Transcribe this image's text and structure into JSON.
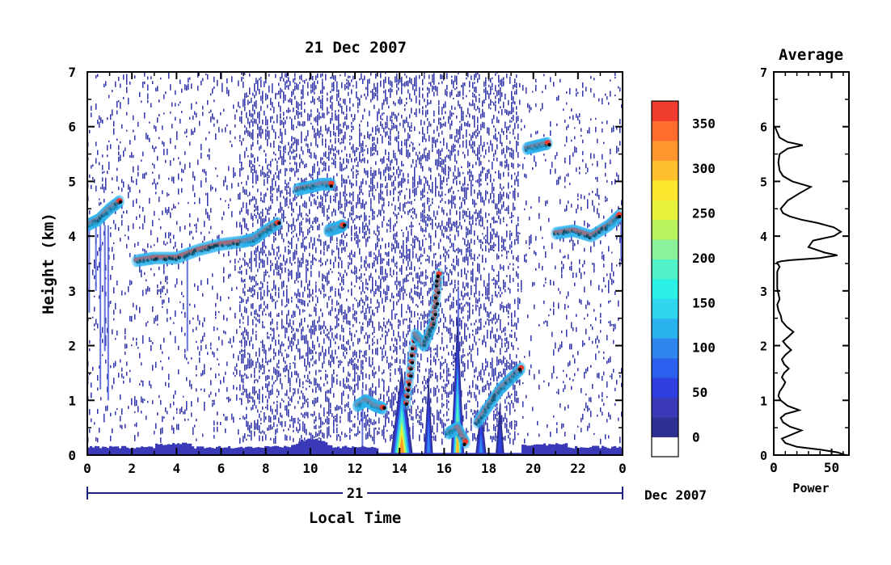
{
  "chart_data": [
    {
      "type": "heatmap",
      "title": "21 Dec 2007",
      "xlabel": "Local Time",
      "ylabel": "Height (km)",
      "x_ticks": [
        "0",
        "2",
        "4",
        "6",
        "8",
        "10",
        "12",
        "14",
        "16",
        "18",
        "20",
        "22",
        "0"
      ],
      "y_ticks": [
        "0",
        "1",
        "2",
        "3",
        "4",
        "5",
        "6",
        "7"
      ],
      "xlim": [
        0,
        24
      ],
      "ylim": [
        0,
        7
      ],
      "date_bar": {
        "day_label": "21",
        "month_label": "Dec 2007"
      },
      "colorbar": {
        "tick_labels": [
          "0",
          "50",
          "100",
          "150",
          "200",
          "250",
          "300",
          "350"
        ],
        "range": [
          0,
          375
        ],
        "colors": [
          "#ffffff",
          "#2e3192",
          "#3a3ab8",
          "#2f3fe0",
          "#2c60ee",
          "#2f86ee",
          "#2ab2ee",
          "#2fd6ee",
          "#2af0e6",
          "#52f2c8",
          "#8af29a",
          "#b8f25c",
          "#e6f23a",
          "#ffe62e",
          "#ffc02e",
          "#ff962e",
          "#ff6c2e",
          "#f03c2e"
        ]
      },
      "features": [
        {
          "name": "cloud-layer",
          "x": [
            0,
            0.5,
            1.0,
            1.5
          ],
          "y": [
            4.2,
            4.3,
            4.5,
            4.65
          ]
        },
        {
          "name": "cloud-layer",
          "x": [
            2.2,
            3.0,
            4.0,
            5.0,
            6.0,
            7.0,
            7.5,
            8.0,
            8.6
          ],
          "y": [
            3.55,
            3.6,
            3.6,
            3.75,
            3.85,
            3.9,
            3.95,
            4.1,
            4.25
          ]
        },
        {
          "name": "cloud-layer",
          "x": [
            9.4,
            10.0,
            10.5,
            11.0
          ],
          "y": [
            4.85,
            4.9,
            4.95,
            4.95
          ]
        },
        {
          "name": "cloud-layer",
          "x": [
            10.8,
            11.2,
            11.5
          ],
          "y": [
            4.1,
            4.15,
            4.2
          ]
        },
        {
          "name": "cloud-layer",
          "x": [
            12.1,
            12.5,
            12.9,
            13.3
          ],
          "y": [
            0.9,
            1.0,
            0.9,
            0.85
          ]
        },
        {
          "name": "cloud-layer",
          "x": [
            14.3,
            14.7,
            15.1,
            15.5,
            15.8
          ],
          "y": [
            0.95,
            2.2,
            2.0,
            2.4,
            3.4
          ]
        },
        {
          "name": "cloud-layer",
          "x": [
            16.2,
            16.6,
            17.0
          ],
          "y": [
            0.4,
            0.5,
            0.2
          ]
        },
        {
          "name": "cloud-layer",
          "x": [
            17.5,
            18.0,
            18.5,
            19.0,
            19.5
          ],
          "y": [
            0.6,
            0.9,
            1.2,
            1.4,
            1.6
          ]
        },
        {
          "name": "cloud-layer",
          "x": [
            19.7,
            20.2,
            20.7
          ],
          "y": [
            5.6,
            5.65,
            5.7
          ]
        },
        {
          "name": "cloud-layer",
          "x": [
            21.0,
            21.8,
            22.6,
            23.4,
            23.9
          ],
          "y": [
            4.05,
            4.1,
            4.0,
            4.2,
            4.4
          ]
        }
      ]
    },
    {
      "type": "line",
      "title": "Average",
      "xlabel": "Power",
      "ylabel": "",
      "x_ticks": [
        "0",
        "50"
      ],
      "y_ticks": [
        "0",
        "1",
        "2",
        "3",
        "4",
        "5",
        "6",
        "7"
      ],
      "xlim": [
        0,
        65
      ],
      "ylim": [
        0,
        7
      ],
      "series": [
        {
          "x": [
            62,
            55,
            40,
            20,
            10,
            7,
            16,
            24,
            14,
            8,
            6,
            10,
            22,
            12,
            6,
            4,
            5,
            8,
            10,
            7,
            9,
            13,
            9,
            7,
            10,
            15,
            11,
            8,
            13,
            17,
            11,
            7,
            6,
            4,
            3,
            5,
            4,
            3,
            3,
            3,
            3,
            3,
            3,
            4,
            5,
            4,
            3,
            3,
            6,
            14,
            40,
            55,
            44,
            30,
            34,
            52,
            58,
            52,
            38,
            24,
            14,
            8,
            6,
            12,
            22,
            32,
            16,
            8,
            5,
            4,
            5,
            12,
            25,
            12,
            5,
            3,
            2,
            1
          ],
          "y": [
            0.0,
            0.05,
            0.1,
            0.15,
            0.22,
            0.3,
            0.38,
            0.45,
            0.52,
            0.6,
            0.68,
            0.75,
            0.82,
            0.9,
            1.0,
            1.08,
            1.16,
            1.25,
            1.33,
            1.42,
            1.5,
            1.58,
            1.66,
            1.75,
            1.83,
            1.92,
            2.0,
            2.08,
            2.17,
            2.25,
            2.35,
            2.45,
            2.55,
            2.65,
            2.75,
            2.85,
            2.95,
            3.05,
            3.15,
            3.2,
            3.25,
            3.3,
            3.35,
            3.4,
            3.44,
            3.48,
            3.5,
            3.52,
            3.54,
            3.56,
            3.6,
            3.65,
            3.7,
            3.8,
            3.92,
            4.0,
            4.08,
            4.16,
            4.24,
            4.3,
            4.36,
            4.42,
            4.5,
            4.65,
            4.78,
            4.9,
            5.0,
            5.1,
            5.2,
            5.35,
            5.5,
            5.6,
            5.66,
            5.72,
            5.8,
            5.9,
            5.95,
            6.0
          ]
        }
      ]
    }
  ]
}
